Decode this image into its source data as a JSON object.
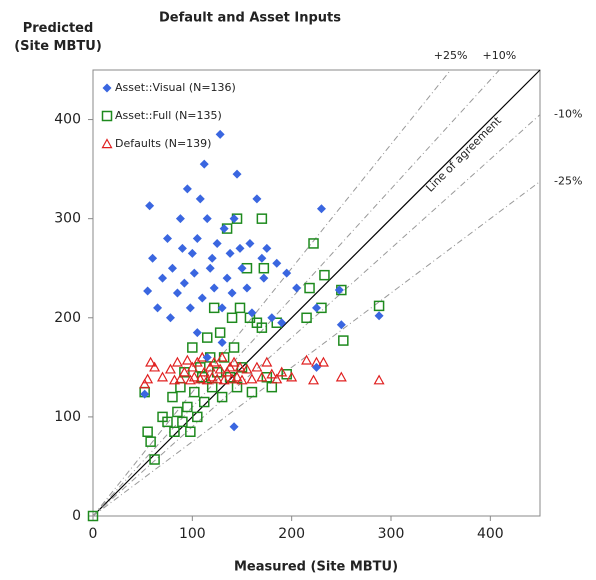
{
  "chart_data": {
    "type": "scatter",
    "title": "Default and Asset Inputs",
    "y_label": "Predicted (Site MBTU)",
    "x_label": "Measured (Site MBTU)",
    "xlim": [
      0,
      450
    ],
    "ylim": [
      0,
      450
    ],
    "xticks": [
      0,
      100,
      200,
      300,
      400
    ],
    "yticks": [
      0,
      100,
      200,
      300,
      400
    ],
    "grid": false,
    "legend": "upper left",
    "reference_lines": [
      {
        "label": "Line of agreement",
        "slope": 1,
        "color": "#000000"
      },
      {
        "label": "+25%",
        "slope": 1.25,
        "color": "#999999"
      },
      {
        "label": "+10%",
        "slope": 1.1,
        "color": "#999999"
      },
      {
        "label": "-10%",
        "slope": 0.9,
        "color": "#999999"
      },
      {
        "label": "-25%",
        "slope": 0.75,
        "color": "#999999"
      }
    ],
    "series": [
      {
        "name": "Asset::Visual (N=136)",
        "color": "#3a66e0",
        "marker": "diamond",
        "x": [
          57,
          60,
          55,
          65,
          70,
          75,
          78,
          80,
          85,
          88,
          90,
          92,
          95,
          98,
          100,
          102,
          105,
          108,
          110,
          112,
          115,
          118,
          120,
          122,
          125,
          128,
          130,
          132,
          135,
          138,
          140,
          142,
          145,
          148,
          150,
          155,
          158,
          160,
          165,
          170,
          172,
          175,
          180,
          185,
          190,
          195,
          205,
          225,
          230,
          248,
          250,
          288,
          52,
          142,
          130,
          115,
          105,
          225
        ],
        "values": [
          313,
          260,
          227,
          210,
          240,
          280,
          200,
          250,
          225,
          300,
          270,
          235,
          330,
          210,
          265,
          245,
          280,
          320,
          220,
          355,
          300,
          250,
          260,
          230,
          275,
          385,
          210,
          290,
          240,
          265,
          225,
          300,
          345,
          270,
          250,
          230,
          275,
          205,
          320,
          260,
          240,
          270,
          200,
          255,
          195,
          245,
          230,
          210,
          310,
          228,
          193,
          202,
          123,
          90,
          175,
          160,
          185,
          150
        ]
      },
      {
        "name": "Asset::Full (N=135)",
        "color": "#1e8a1e",
        "marker": "square",
        "x": [
          0,
          52,
          55,
          58,
          62,
          70,
          75,
          80,
          82,
          85,
          88,
          90,
          92,
          95,
          98,
          100,
          102,
          105,
          108,
          110,
          112,
          115,
          118,
          120,
          122,
          125,
          128,
          130,
          132,
          135,
          138,
          140,
          142,
          145,
          148,
          150,
          155,
          158,
          160,
          165,
          170,
          172,
          175,
          180,
          185,
          195,
          215,
          218,
          222,
          230,
          233,
          250,
          252,
          288,
          145,
          170
        ],
        "values": [
          0,
          125,
          85,
          75,
          57,
          100,
          95,
          120,
          85,
          105,
          130,
          95,
          145,
          110,
          85,
          170,
          125,
          100,
          150,
          140,
          115,
          180,
          160,
          130,
          210,
          145,
          185,
          120,
          160,
          290,
          140,
          200,
          170,
          130,
          210,
          150,
          250,
          200,
          125,
          195,
          190,
          250,
          140,
          130,
          195,
          143,
          200,
          230,
          275,
          210,
          243,
          228,
          177,
          212,
          300,
          300
        ]
      },
      {
        "name": "Defaults (N=139)",
        "color": "#e02020",
        "marker": "triangle",
        "x": [
          52,
          55,
          58,
          62,
          70,
          78,
          82,
          85,
          88,
          92,
          95,
          98,
          100,
          102,
          105,
          108,
          110,
          112,
          115,
          118,
          120,
          122,
          125,
          128,
          130,
          132,
          135,
          138,
          140,
          142,
          145,
          148,
          150,
          155,
          160,
          165,
          170,
          175,
          180,
          185,
          190,
          200,
          215,
          222,
          225,
          232,
          250,
          288
        ],
        "values": [
          133,
          138,
          155,
          150,
          140,
          148,
          137,
          155,
          138,
          145,
          157,
          137,
          150,
          140,
          155,
          138,
          160,
          145,
          137,
          150,
          140,
          155,
          138,
          148,
          160,
          137,
          145,
          150,
          138,
          155,
          140,
          150,
          137,
          148,
          138,
          150,
          140,
          155,
          143,
          138,
          145,
          140,
          157,
          137,
          155,
          155,
          140,
          137
        ]
      }
    ]
  }
}
